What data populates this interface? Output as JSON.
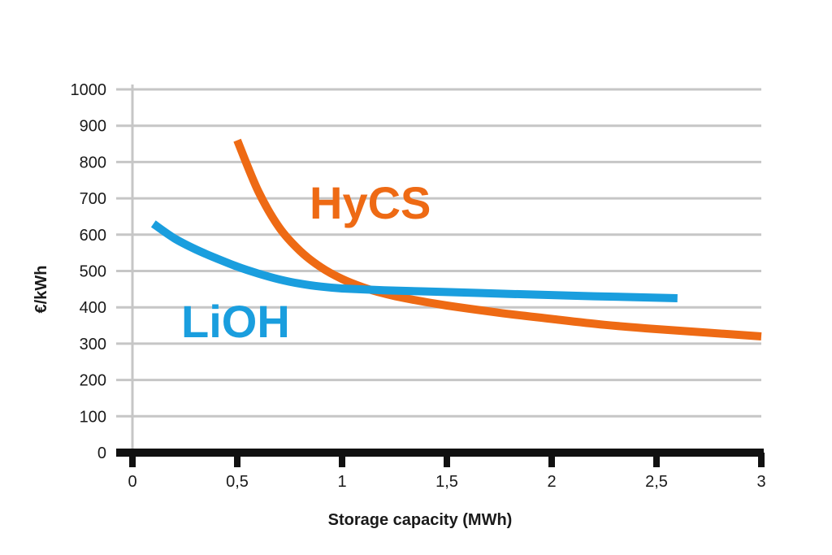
{
  "chart_data": {
    "type": "line",
    "title": "",
    "xlabel": "Storage capacity (MWh)",
    "ylabel": "€/kWh",
    "xlim": [
      0,
      3
    ],
    "ylim": [
      0,
      1000
    ],
    "grid": true,
    "x_ticks": [
      {
        "value": 0,
        "label": "0"
      },
      {
        "value": 0.5,
        "label": "0,5"
      },
      {
        "value": 1,
        "label": "1"
      },
      {
        "value": 1.5,
        "label": "1,5"
      },
      {
        "value": 2,
        "label": "2"
      },
      {
        "value": 2.5,
        "label": "2,5"
      },
      {
        "value": 3,
        "label": "3"
      }
    ],
    "y_ticks": [
      {
        "value": 0,
        "label": "0"
      },
      {
        "value": 100,
        "label": "100"
      },
      {
        "value": 200,
        "label": "200"
      },
      {
        "value": 300,
        "label": "300"
      },
      {
        "value": 400,
        "label": "400"
      },
      {
        "value": 500,
        "label": "500"
      },
      {
        "value": 600,
        "label": "600"
      },
      {
        "value": 700,
        "label": "700"
      },
      {
        "value": 800,
        "label": "800"
      },
      {
        "value": 900,
        "label": "900"
      },
      {
        "value": 1000,
        "label": "1000"
      }
    ],
    "series": [
      {
        "name": "HyCS",
        "color": "#ee6a14",
        "x": [
          0.5,
          0.6,
          0.7,
          0.8,
          0.9,
          1.0,
          1.1,
          1.2,
          1.3,
          1.5,
          1.75,
          2.0,
          2.25,
          2.5,
          2.75,
          3.0
        ],
        "y": [
          860,
          720,
          620,
          555,
          510,
          478,
          455,
          438,
          425,
          405,
          385,
          368,
          352,
          340,
          330,
          320
        ]
      },
      {
        "name": "LiOH",
        "color": "#1a9ede",
        "x": [
          0.1,
          0.2,
          0.3,
          0.4,
          0.5,
          0.6,
          0.7,
          0.8,
          0.9,
          1.0,
          1.2,
          1.5,
          1.8,
          2.1,
          2.4,
          2.6
        ],
        "y": [
          630,
          590,
          560,
          535,
          512,
          493,
          477,
          465,
          457,
          452,
          447,
          442,
          437,
          432,
          428,
          425
        ]
      }
    ]
  }
}
